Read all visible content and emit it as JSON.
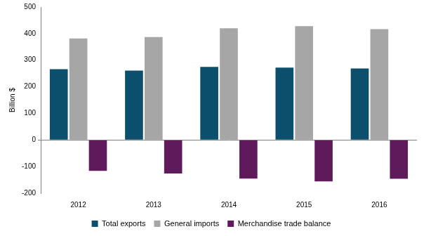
{
  "chart_data": {
    "type": "bar",
    "categories": [
      "2012",
      "2013",
      "2014",
      "2015",
      "2016"
    ],
    "series": [
      {
        "name": "Total exports",
        "color": "#0b4f6c",
        "values": [
          266,
          261,
          275,
          272,
          269
        ]
      },
      {
        "name": "General imports",
        "color": "#a6a6a6",
        "values": [
          382,
          387,
          420,
          428,
          417
        ]
      },
      {
        "name": "Merchandise trade balance",
        "color": "#5f1a5c",
        "values": [
          -116,
          -126,
          -145,
          -156,
          -146
        ]
      }
    ],
    "y_label": "Billion $",
    "ylim": [
      -200,
      500
    ],
    "yticks": [
      -200,
      -100,
      0,
      100,
      200,
      300,
      400,
      500
    ],
    "grid": false,
    "legend": "bottom"
  }
}
